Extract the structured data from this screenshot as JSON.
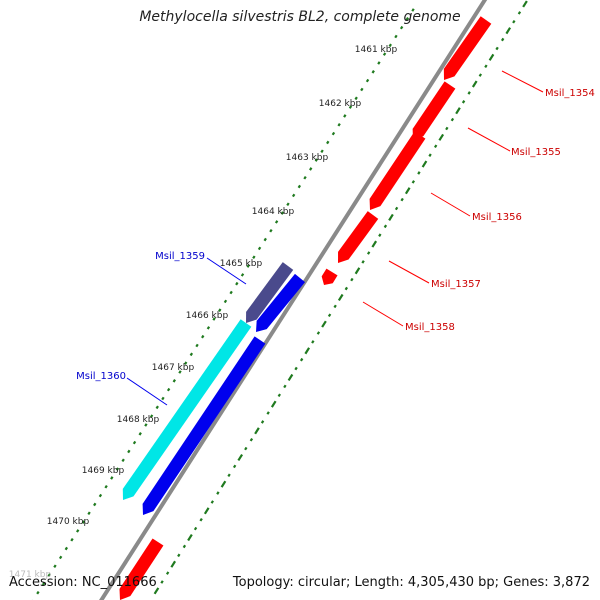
{
  "title": "Methylocella silvestris BL2, complete genome",
  "accession": "Accession: NC_011666",
  "summary": "Topology: circular; Length: 4,305,430 bp; Genes: 3,872",
  "colors": {
    "backbone": "#8a8a8a",
    "tick_marks": "#1f7a1f",
    "forward_genes": "#ff0000",
    "reverse_genes": "#0000ee",
    "reverse_highlight_a": "#00e6e6",
    "reverse_highlight_b": "#4a4a8c",
    "forward_labels": "#cc0000",
    "reverse_labels": "#0000cc"
  },
  "position_labels": [
    {
      "kbp": 1461,
      "text": "1461 kbp"
    },
    {
      "kbp": 1462,
      "text": "1462 kbp"
    },
    {
      "kbp": 1463,
      "text": "1463 kbp"
    },
    {
      "kbp": 1464,
      "text": "1464 kbp"
    },
    {
      "kbp": 1465,
      "text": "1465 kbp"
    },
    {
      "kbp": 1466,
      "text": "1466 kbp"
    },
    {
      "kbp": 1467,
      "text": "1467 kbp"
    },
    {
      "kbp": 1468,
      "text": "1468 kbp"
    },
    {
      "kbp": 1469,
      "text": "1469 kbp"
    },
    {
      "kbp": 1470,
      "text": "1470 kbp"
    },
    {
      "kbp": 1471,
      "text": "1471 kbp"
    }
  ],
  "forward_genes": [
    {
      "label": "Msil_1354"
    },
    {
      "label": "Msil_1355"
    },
    {
      "label": "Msil_1356"
    },
    {
      "label": "Msil_1357"
    },
    {
      "label": "Msil_1358"
    }
  ],
  "reverse_genes": [
    {
      "label": "Msil_1359"
    },
    {
      "label": "Msil_1360"
    }
  ]
}
